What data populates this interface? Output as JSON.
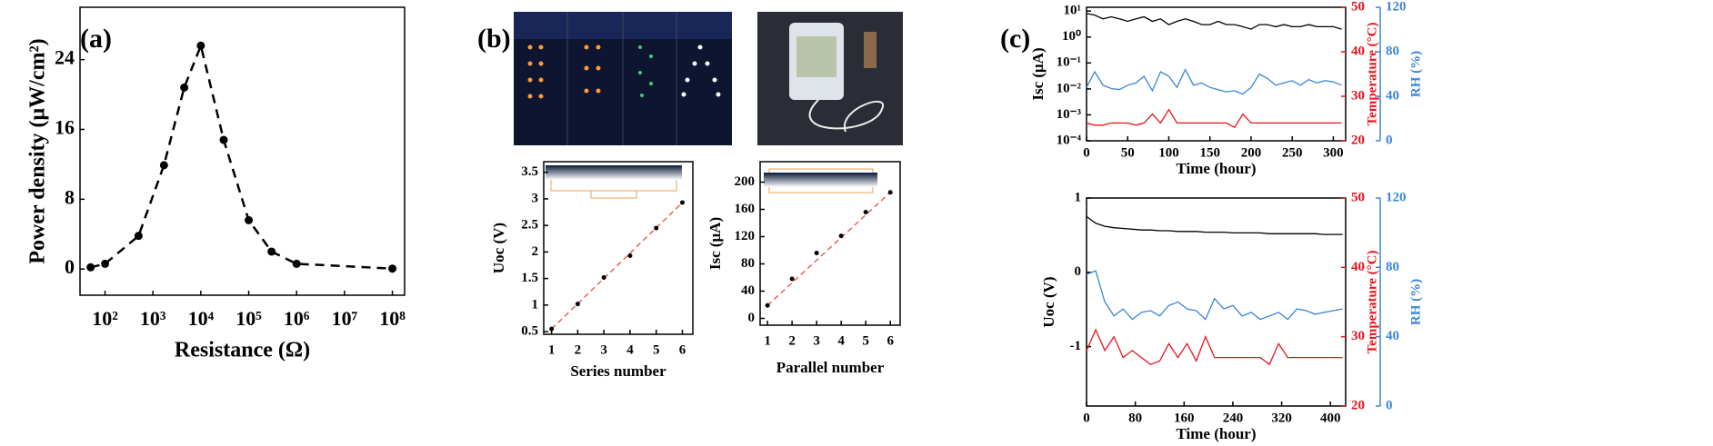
{
  "panels": [
    "(a)",
    "(b)",
    "(c)"
  ],
  "chart_data": [
    {
      "type": "line",
      "xlabel": "Resistance (Ω)",
      "ylabel": "Power density (μW/cm²)",
      "x": [
        50,
        100,
        500,
        1700,
        4500,
        10000,
        30000,
        100000,
        300000,
        1000000,
        100000000
      ],
      "series": [
        {
          "color": "#000000",
          "values": [
            0.2,
            0.6,
            3.8,
            11.9,
            20.8,
            25.6,
            14.8,
            5.6,
            2.0,
            0.6,
            0.05
          ]
        }
      ],
      "line_style": "dashed",
      "markers": true,
      "xscale": "log",
      "xlim": [
        30,
        180000000
      ],
      "ylim": [
        -3,
        30
      ],
      "xticks": [
        {
          "value": 100,
          "label": "10²"
        },
        {
          "value": 1000,
          "label": "10³"
        },
        {
          "value": 10000,
          "label": "10⁴"
        },
        {
          "value": 100000,
          "label": "10⁵"
        },
        {
          "value": 1000000,
          "label": "10⁶"
        },
        {
          "value": 10000000,
          "label": "10⁷"
        },
        {
          "value": 100000000,
          "label": "10⁸"
        }
      ],
      "yticks": [
        0,
        8,
        16,
        24
      ]
    },
    {
      "type": "scatter",
      "xlabel": "Series number",
      "ylabel": "Uoc (V)",
      "x": [
        1,
        2,
        3,
        4,
        5,
        6
      ],
      "series": [
        {
          "color": "#000000",
          "values": [
            0.55,
            1.02,
            1.52,
            1.93,
            2.45,
            2.93
          ]
        }
      ],
      "trend_line": "#e8503a",
      "xlim": [
        0.7,
        6.4
      ],
      "ylim": [
        0.45,
        3.7
      ],
      "xticks": [
        1,
        2,
        3,
        4,
        5,
        6
      ],
      "yticks": [
        0.5,
        1.0,
        1.5,
        2.0,
        2.5,
        3.0,
        3.5
      ]
    },
    {
      "type": "scatter",
      "xlabel": "Parallel number",
      "ylabel": "Isc (μA)",
      "x": [
        1,
        2,
        3,
        4,
        5,
        6
      ],
      "series": [
        {
          "color": "#000000",
          "values": [
            19,
            58,
            96,
            121,
            156,
            185
          ]
        }
      ],
      "trend_line": "#e8503a",
      "xlim": [
        0.7,
        6.4
      ],
      "ylim": [
        -10,
        230
      ],
      "xticks": [
        1,
        2,
        3,
        4,
        5,
        6
      ],
      "yticks": [
        0,
        40,
        80,
        120,
        160,
        200
      ]
    },
    {
      "type": "line",
      "xlabel": "Time (hour)",
      "ylabel": "Isc (μA)",
      "y2label": "Temperature (°C)",
      "y3label": "RH (%)",
      "y2color": "#e8141b",
      "y3color": "#3a86d6",
      "x": [
        0,
        10,
        20,
        30,
        40,
        50,
        60,
        70,
        80,
        90,
        100,
        110,
        120,
        130,
        140,
        150,
        160,
        170,
        180,
        190,
        200,
        210,
        220,
        230,
        240,
        250,
        260,
        270,
        280,
        290,
        300,
        310
      ],
      "series": [
        {
          "color": "#000000",
          "values": [
            8,
            7,
            5,
            6,
            5,
            4,
            5,
            6,
            4,
            5,
            3,
            4,
            5,
            4,
            3,
            3,
            4,
            3,
            3,
            2.5,
            2,
            3,
            3,
            2.5,
            3,
            2.5,
            2.5,
            3,
            2.5,
            2.5,
            2.5,
            2
          ]
        },
        {
          "color": "#3a86d6",
          "axis": "y3",
          "values": [
            48,
            62,
            50,
            47,
            46,
            50,
            52,
            58,
            45,
            62,
            58,
            48,
            64,
            50,
            52,
            48,
            46,
            44,
            45,
            42,
            48,
            60,
            56,
            50,
            52,
            54,
            50,
            55,
            52,
            54,
            53,
            50
          ]
        },
        {
          "color": "#e8141b",
          "axis": "y2",
          "values": [
            24,
            23.5,
            23.5,
            24,
            24,
            24,
            23.5,
            24,
            26,
            24,
            27,
            24,
            24,
            24,
            24,
            24,
            24,
            24,
            23,
            26,
            24,
            24,
            24,
            24,
            24,
            24,
            24,
            24,
            24,
            24,
            24,
            24
          ]
        }
      ],
      "yscale": "log",
      "xlim": [
        0,
        315
      ],
      "ylim": [
        0.0001,
        14
      ],
      "y2lim": [
        20,
        50
      ],
      "y3lim": [
        0,
        120
      ],
      "xticks": [
        0,
        50,
        100,
        150,
        200,
        250,
        300
      ],
      "yticks": [
        {
          "value": 0.0001,
          "label": "10⁻⁴"
        },
        {
          "value": 0.001,
          "label": "10⁻³"
        },
        {
          "value": 0.01,
          "label": "10⁻²"
        },
        {
          "value": 0.1,
          "label": "10⁻¹"
        },
        {
          "value": 1,
          "label": "10⁰"
        },
        {
          "value": 10,
          "label": "10¹"
        }
      ],
      "y2ticks": [
        20,
        30,
        40,
        50
      ],
      "y3ticks": [
        0,
        40,
        80,
        120
      ]
    },
    {
      "type": "line",
      "xlabel": "Time (hour)",
      "ylabel": "Uoc (V)",
      "y2label": "Temperature (°C)",
      "y3label": "RH (%)",
      "y2color": "#e8141b",
      "y3color": "#3a86d6",
      "x": [
        0,
        15,
        30,
        45,
        60,
        75,
        90,
        105,
        120,
        135,
        150,
        165,
        180,
        195,
        210,
        225,
        240,
        255,
        270,
        285,
        300,
        315,
        330,
        345,
        360,
        375,
        390,
        405,
        420
      ],
      "series": [
        {
          "color": "#000000",
          "values": [
            0.75,
            0.66,
            0.62,
            0.6,
            0.59,
            0.58,
            0.57,
            0.57,
            0.56,
            0.56,
            0.55,
            0.55,
            0.55,
            0.54,
            0.54,
            0.54,
            0.53,
            0.53,
            0.53,
            0.53,
            0.52,
            0.52,
            0.52,
            0.52,
            0.52,
            0.52,
            0.51,
            0.51,
            0.51
          ]
        },
        {
          "color": "#3a86d6",
          "axis": "y3",
          "values": [
            76,
            78,
            60,
            52,
            56,
            50,
            54,
            55,
            52,
            58,
            60,
            56,
            55,
            50,
            62,
            56,
            58,
            52,
            54,
            50,
            52,
            54,
            50,
            56,
            55,
            53,
            54,
            55,
            56
          ]
        },
        {
          "color": "#e8141b",
          "axis": "y2",
          "values": [
            28,
            31,
            28,
            30,
            27,
            28,
            27,
            26,
            26.5,
            29,
            27,
            29,
            26.5,
            30,
            27,
            27,
            27,
            27,
            27,
            27,
            26,
            29,
            27,
            27,
            27,
            27,
            27,
            27,
            27
          ]
        }
      ],
      "xlim": [
        0,
        425
      ],
      "ylim": [
        -1.8,
        1
      ],
      "y2lim": [
        20,
        50
      ],
      "y3lim": [
        0,
        120
      ],
      "xticks": [
        0,
        80,
        160,
        240,
        320,
        400
      ],
      "yticks": [
        -1,
        0,
        1
      ],
      "y2ticks": [
        20,
        30,
        40,
        50
      ],
      "y3ticks": [
        0,
        40,
        80,
        120
      ]
    }
  ]
}
